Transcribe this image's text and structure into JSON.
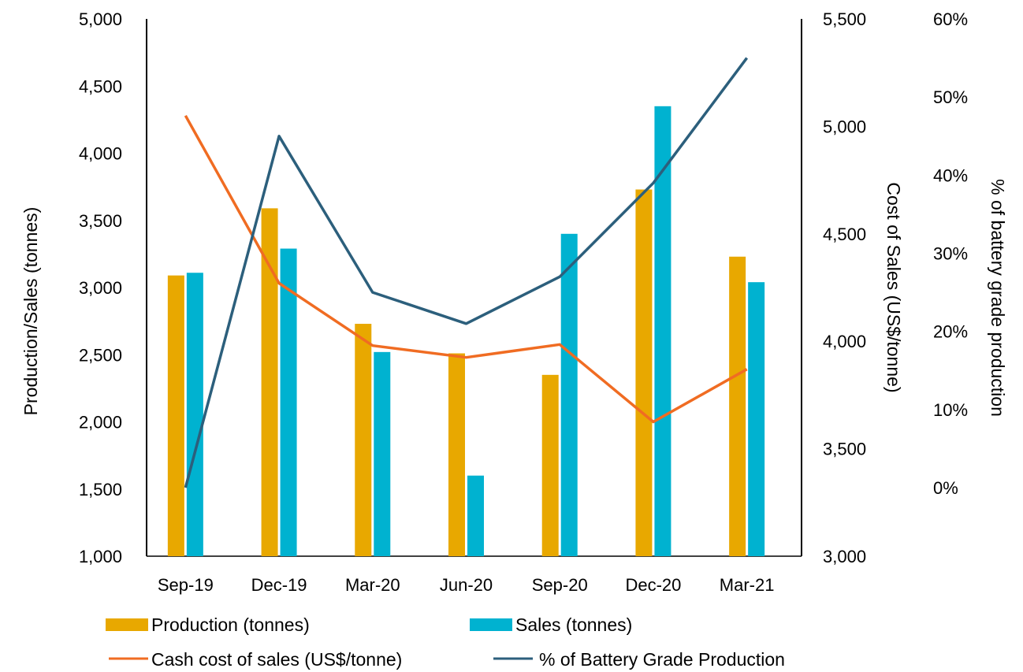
{
  "chart_data": {
    "type": "bar",
    "categories": [
      "Sep-19",
      "Dec-19",
      "Mar-20",
      "Jun-20",
      "Sep-20",
      "Dec-20",
      "Mar-21"
    ],
    "series": [
      {
        "name": "Production (tonnes)",
        "kind": "bar",
        "axis": "left",
        "color": "#E8A800",
        "values": [
          3090,
          3590,
          2730,
          2510,
          2350,
          3730,
          3230
        ]
      },
      {
        "name": "Sales (tonnes)",
        "kind": "bar",
        "axis": "left",
        "color": "#00B2D0",
        "values": [
          3110,
          3290,
          2520,
          1600,
          3400,
          4350,
          3040
        ]
      },
      {
        "name": "Cash cost of sales (US$/tonne)",
        "kind": "line",
        "axis": "right",
        "color": "#F06C22",
        "values": [
          5050,
          4270,
          3980,
          3925,
          3985,
          3625,
          3870
        ]
      },
      {
        "name": "% of Battery Grade Production",
        "kind": "line",
        "axis": "right2",
        "color": "#2C5F7C",
        "values": [
          0,
          45,
          25,
          21,
          27,
          39,
          55
        ]
      }
    ],
    "axes": {
      "left": {
        "label": "Production/Sales (tonnes)",
        "min": 1000,
        "max": 5000,
        "ticks": [
          "1,000",
          "1,500",
          "2,000",
          "2,500",
          "3,000",
          "3,500",
          "4,000",
          "4,500",
          "5,000"
        ]
      },
      "right": {
        "label": "Cost of Sales (US$/tonne)",
        "min": 3000,
        "max": 5500,
        "ticks": [
          "3,000",
          "3,500",
          "4,000",
          "4,500",
          "5,000",
          "5,500"
        ]
      },
      "right2": {
        "label": "% of battery grade production",
        "min": 0,
        "max": 60,
        "ticks": [
          "0%",
          "10%",
          "20%",
          "30%",
          "40%",
          "50%",
          "60%"
        ]
      }
    },
    "grid": false,
    "legend_position": "bottom"
  }
}
